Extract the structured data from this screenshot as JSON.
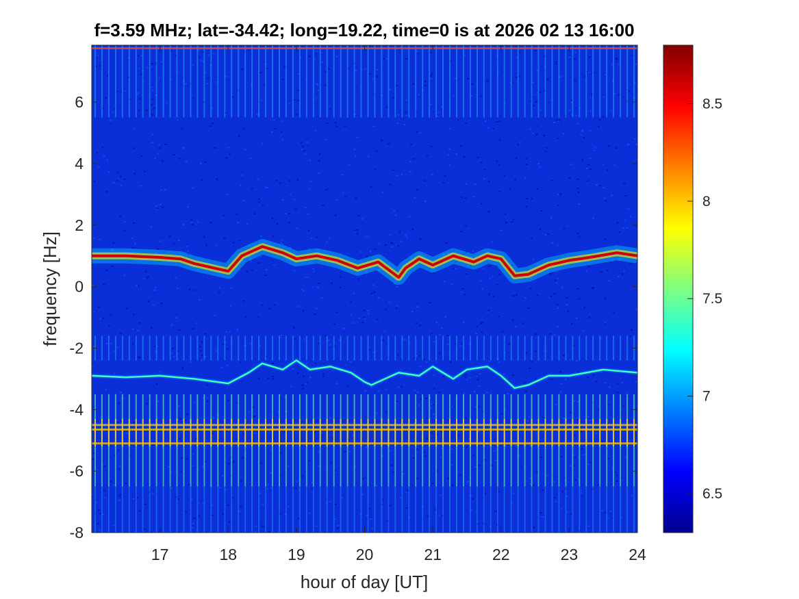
{
  "chart_data": {
    "type": "heatmap",
    "title": "f=3.59 MHz;  lat=-34.42; long=19.22, time=0 is at 2026 02 13 16:00",
    "xlabel": "hour of day [UT]",
    "ylabel": "frequency [Hz]",
    "xlim": [
      16.0,
      24.0
    ],
    "ylim": [
      -8,
      7.85
    ],
    "xticks": [
      17,
      18,
      19,
      20,
      21,
      22,
      23,
      24
    ],
    "yticks": [
      -8,
      -6,
      -4,
      -2,
      0,
      2,
      4,
      6
    ],
    "xtick_labels": [
      "17",
      "18",
      "19",
      "20",
      "21",
      "22",
      "23",
      "24"
    ],
    "ytick_labels": [
      "-8",
      "-6",
      "-4",
      "-2",
      "0",
      "2",
      "4",
      "6"
    ],
    "colormap": "jet",
    "colorbar": {
      "range": [
        6.3,
        8.8
      ],
      "ticks": [
        6.5,
        7,
        7.5,
        8,
        8.5
      ],
      "tick_labels": [
        "6.5",
        "7",
        "7.5",
        "8",
        "8.5"
      ]
    },
    "background_level": 6.45,
    "main_trace": {
      "description_level": 8.6,
      "x": [
        16.0,
        16.5,
        17.0,
        17.3,
        17.5,
        17.8,
        18.0,
        18.2,
        18.5,
        18.8,
        19.0,
        19.3,
        19.6,
        19.9,
        20.2,
        20.5,
        20.6,
        20.8,
        21.0,
        21.3,
        21.6,
        21.8,
        22.0,
        22.2,
        22.4,
        22.7,
        23.0,
        23.3,
        23.7,
        24.0
      ],
      "y": [
        1.0,
        1.0,
        0.95,
        0.9,
        0.75,
        0.6,
        0.5,
        1.0,
        1.3,
        1.1,
        0.9,
        1.0,
        0.85,
        0.6,
        0.8,
        0.3,
        0.6,
        0.9,
        0.7,
        1.0,
        0.8,
        1.0,
        0.9,
        0.35,
        0.4,
        0.7,
        0.85,
        0.95,
        1.1,
        1.0
      ]
    },
    "secondary_trace": {
      "description_level": 7.4,
      "x": [
        16.0,
        16.5,
        17.0,
        17.5,
        18.0,
        18.3,
        18.5,
        18.8,
        19.0,
        19.2,
        19.5,
        19.8,
        20.0,
        20.1,
        20.3,
        20.5,
        20.8,
        21.0,
        21.3,
        21.5,
        21.8,
        22.0,
        22.2,
        22.4,
        22.7,
        23.0,
        23.5,
        24.0
      ],
      "y": [
        -2.9,
        -2.95,
        -2.9,
        -3.0,
        -3.15,
        -2.8,
        -2.5,
        -2.7,
        -2.4,
        -2.7,
        -2.6,
        -2.8,
        -3.1,
        -3.2,
        -3.0,
        -2.8,
        -2.9,
        -2.6,
        -3.0,
        -2.7,
        -2.6,
        -2.9,
        -3.3,
        -3.2,
        -2.9,
        -2.9,
        -2.7,
        -2.8
      ]
    },
    "horizontal_bands": [
      {
        "y": 7.75,
        "level": 8.3
      },
      {
        "y": -4.5,
        "level": 8.0
      },
      {
        "y": -4.65,
        "level": 8.0
      },
      {
        "y": -5.1,
        "level": 8.0
      }
    ],
    "stripe_period_hours": 0.1
  }
}
